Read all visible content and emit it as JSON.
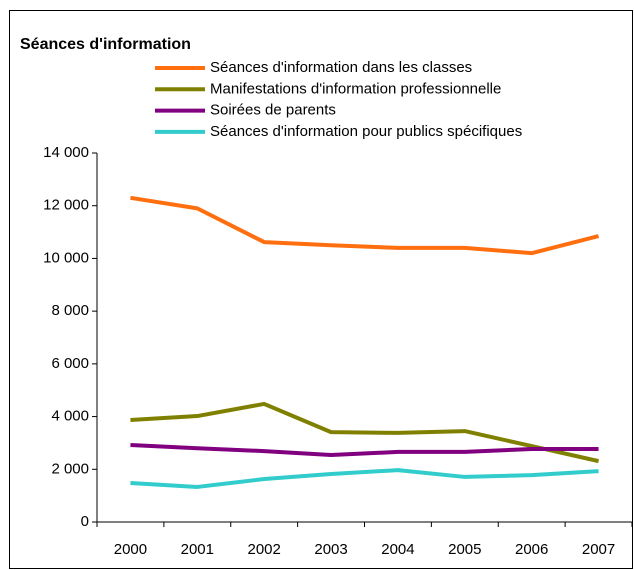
{
  "chart_data": {
    "type": "line",
    "title": "Séances d'information",
    "categories": [
      "2000",
      "2001",
      "2002",
      "2003",
      "2004",
      "2005",
      "2006",
      "2007"
    ],
    "series": [
      {
        "name": "Séances d'information dans les classes",
        "color": "#ff6f0f",
        "values": [
          12300,
          11900,
          10620,
          10500,
          10400,
          10400,
          10200,
          10850
        ]
      },
      {
        "name": "Manifestations d'information professionnelle",
        "color": "#808000",
        "values": [
          3870,
          4020,
          4480,
          3410,
          3380,
          3450,
          2880,
          2310
        ]
      },
      {
        "name": "Soirées de parents",
        "color": "#800080",
        "values": [
          2920,
          2800,
          2690,
          2540,
          2660,
          2660,
          2770,
          2770
        ]
      },
      {
        "name": "Séances d'information pour publics spécifiques",
        "color": "#33cccc",
        "values": [
          1480,
          1330,
          1630,
          1820,
          1970,
          1710,
          1780,
          1930
        ]
      }
    ],
    "ylim": [
      0,
      14000
    ],
    "yticks": [
      0,
      {
        "value": 2000,
        "label": "2 000"
      },
      {
        "value": 4000,
        "label": "4 000"
      },
      {
        "value": 6000,
        "label": "6 000"
      },
      {
        "value": 8000,
        "label": "8 000"
      },
      {
        "value": 10000,
        "label": "10 000"
      },
      {
        "value": 12000,
        "label": "12 000"
      },
      {
        "value": 14000,
        "label": "14 000"
      }
    ],
    "grid": false
  }
}
